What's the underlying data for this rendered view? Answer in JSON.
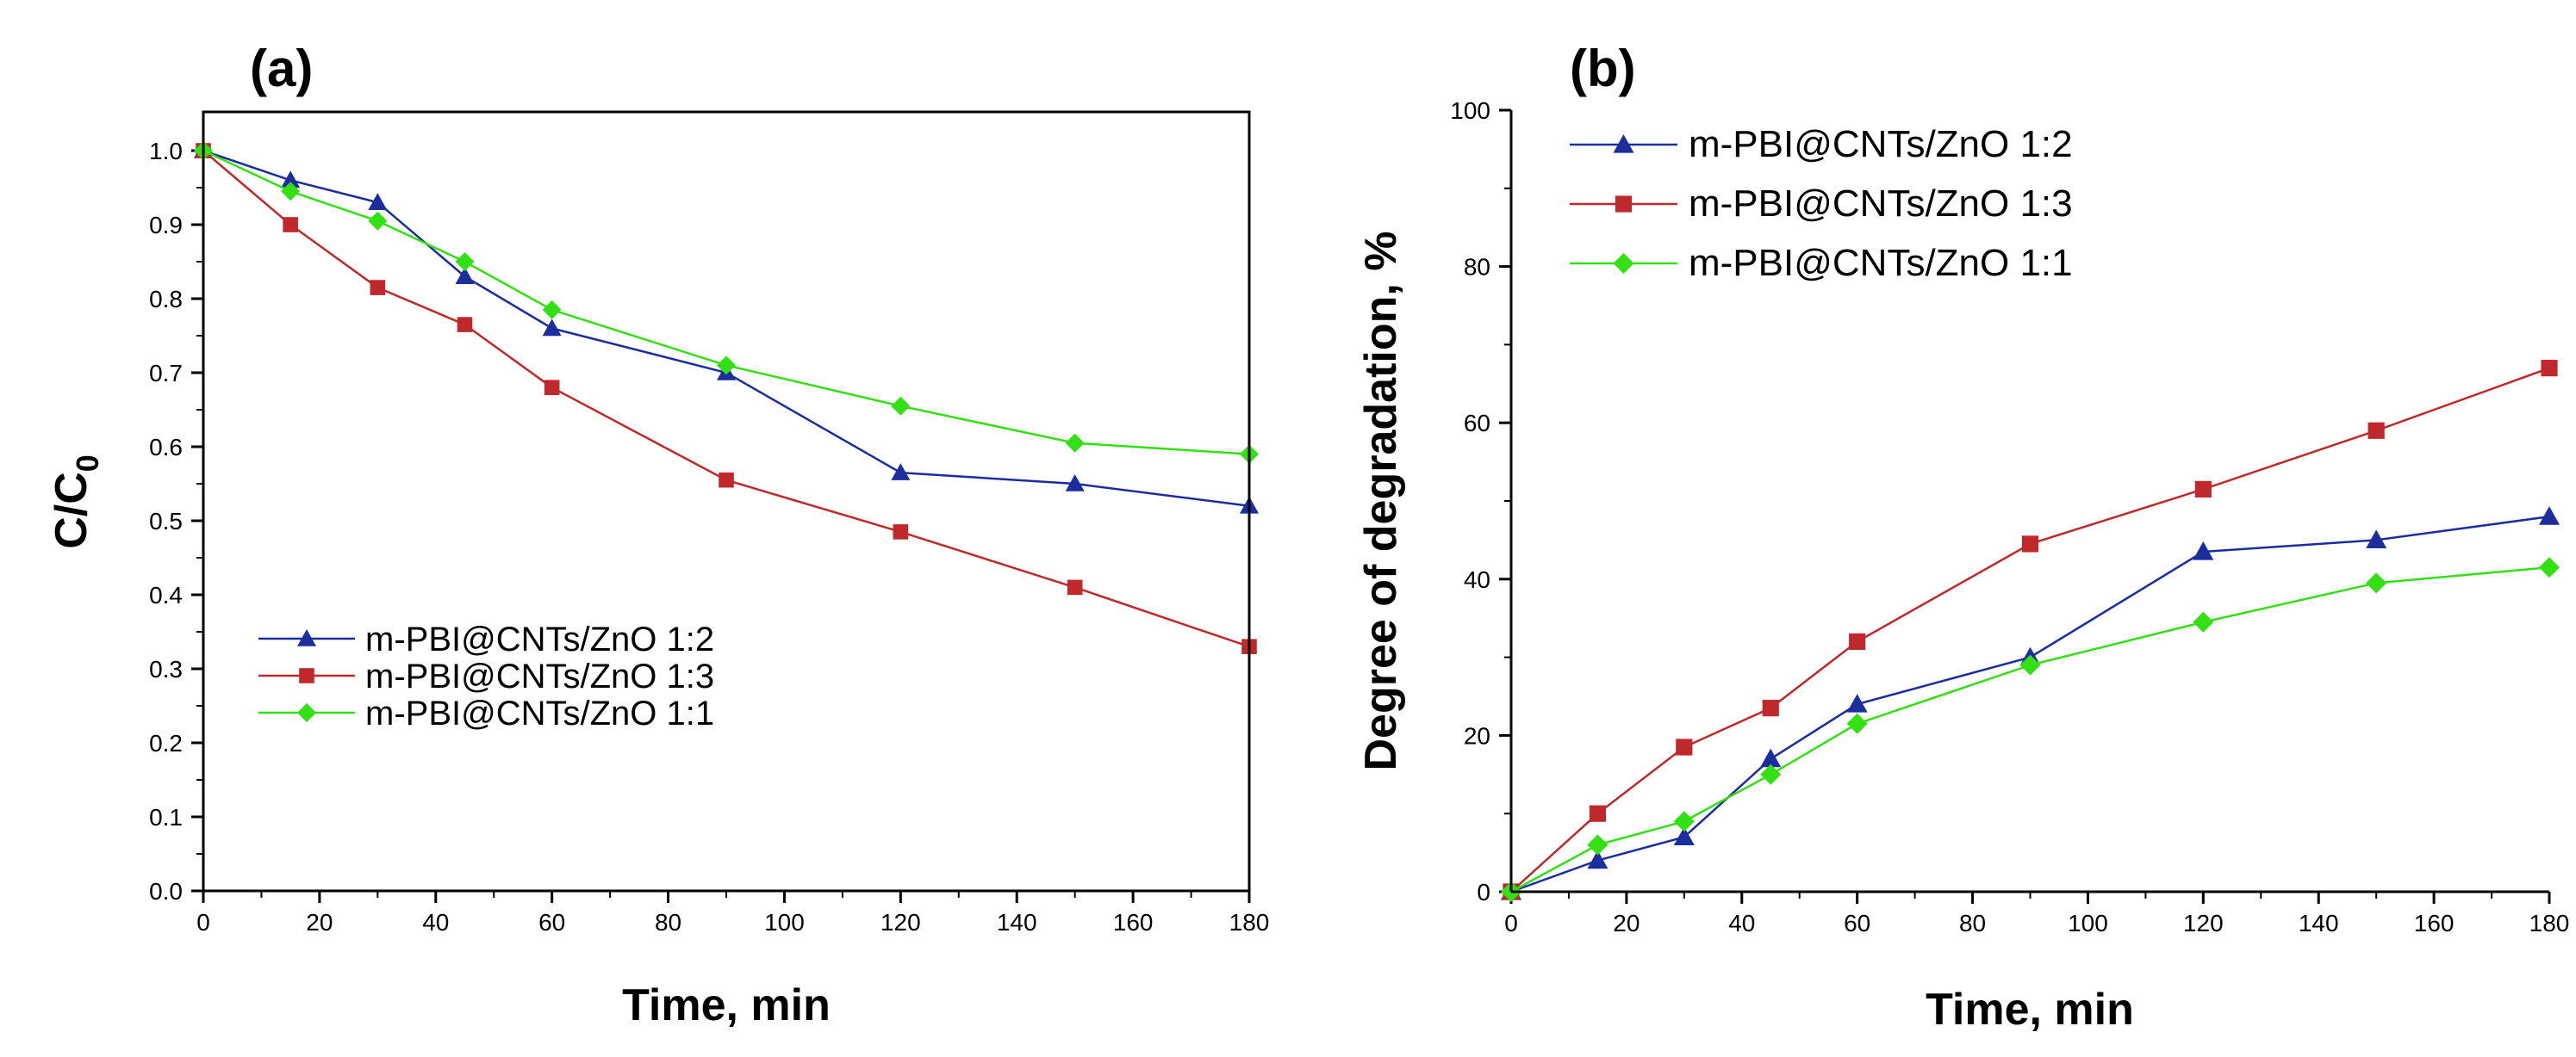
{
  "chart_data": [
    {
      "panel_label": "(a)",
      "type": "line",
      "title": "",
      "xlabel": "Time, min",
      "ylabel": "C/C",
      "ylabel_subscript": "0",
      "xlim": [
        0,
        180
      ],
      "ylim": [
        0,
        1.05
      ],
      "x_ticks": [
        0,
        20,
        40,
        60,
        80,
        100,
        120,
        140,
        160,
        180
      ],
      "y_ticks": [
        "0.0",
        "0.1",
        "0.2",
        "0.3",
        "0.4",
        "0.5",
        "0.6",
        "0.7",
        "0.8",
        "0.9",
        "1.0"
      ],
      "legend_position": "lower-left",
      "x": [
        0,
        15,
        30,
        45,
        60,
        90,
        120,
        150,
        180
      ],
      "series": [
        {
          "name": "m-PBI@CNTs/ZnO 1:2",
          "color": "#1c2e9e",
          "marker": "triangle",
          "values": [
            1.0,
            0.96,
            0.93,
            0.83,
            0.76,
            0.7,
            0.565,
            0.55,
            0.52
          ]
        },
        {
          "name": "m-PBI@CNTs/ZnO 1:3",
          "color": "#c0292b",
          "marker": "square",
          "values": [
            1.0,
            0.9,
            0.815,
            0.765,
            0.68,
            0.555,
            0.485,
            0.41,
            0.33
          ]
        },
        {
          "name": "m-PBI@CNTs/ZnO 1:1",
          "color": "#33e014",
          "marker": "diamond",
          "values": [
            1.0,
            0.945,
            0.905,
            0.85,
            0.785,
            0.71,
            0.655,
            0.605,
            0.59
          ]
        }
      ]
    },
    {
      "panel_label": "(b)",
      "type": "line",
      "title": "",
      "xlabel": "Time, min",
      "ylabel": "Degree of degradation, %",
      "xlim": [
        0,
        180
      ],
      "ylim": [
        0,
        100
      ],
      "x_ticks": [
        0,
        20,
        40,
        60,
        80,
        100,
        120,
        140,
        160,
        180
      ],
      "y_ticks": [
        "0",
        "20",
        "40",
        "60",
        "80",
        "100"
      ],
      "legend_position": "top-left",
      "x": [
        0,
        15,
        30,
        45,
        60,
        90,
        120,
        150,
        180
      ],
      "series": [
        {
          "name": "m-PBI@CNTs/ZnO 1:2",
          "color": "#1c2e9e",
          "marker": "triangle",
          "values": [
            0,
            4,
            7,
            17,
            24,
            30,
            43.5,
            45,
            48
          ]
        },
        {
          "name": "m-PBI@CNTs/ZnO 1:3",
          "color": "#c0292b",
          "marker": "square",
          "values": [
            0,
            10,
            18.5,
            23.5,
            32,
            44.5,
            51.5,
            59,
            67
          ]
        },
        {
          "name": "m-PBI@CNTs/ZnO 1:1",
          "color": "#33e014",
          "marker": "diamond",
          "values": [
            0,
            6,
            9,
            15,
            21.5,
            29,
            34.5,
            39.5,
            41.5
          ]
        }
      ]
    }
  ]
}
